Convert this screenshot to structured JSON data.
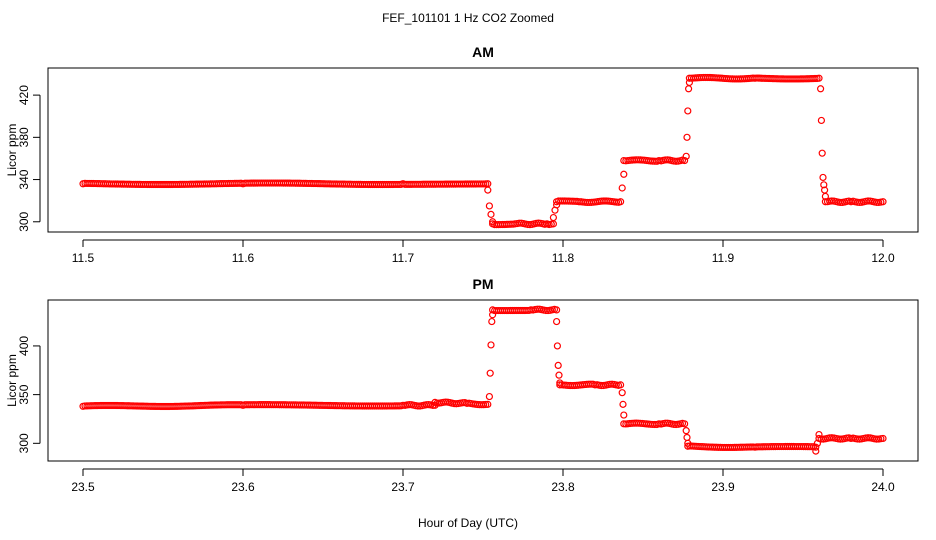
{
  "figure": {
    "title": "FEF_101101  1 Hz CO2 Zoomed",
    "xlabel": "Hour of Day (UTC)"
  },
  "colors": {
    "points": "#ff0000",
    "axes": "#000000"
  },
  "chart_data": [
    {
      "type": "scatter",
      "title": "AM",
      "xlabel": "",
      "ylabel": "Licor ppm",
      "xlim": [
        11.5,
        12.0
      ],
      "ylim": [
        296,
        440
      ],
      "xticks": [
        "11.5",
        "11.6",
        "11.7",
        "11.8",
        "11.9",
        "12.0"
      ],
      "yticks": [
        "300",
        "340",
        "380",
        "420"
      ],
      "series": [
        {
          "marker": "open-circle",
          "segments": [
            {
              "x": [
                11.5,
                11.6,
                11.7,
                11.753
              ],
              "y": [
                336,
                336,
                336,
                336
              ]
            },
            {
              "x": [
                11.753,
                11.754,
                11.755,
                11.756
              ],
              "y": [
                330,
                315,
                307,
                300
              ]
            },
            {
              "x": [
                11.756,
                11.77,
                11.79,
                11.794
              ],
              "y": [
                298,
                298,
                298,
                298
              ]
            },
            {
              "x": [
                11.794,
                11.795,
                11.796
              ],
              "y": [
                304,
                311,
                316
              ]
            },
            {
              "x": [
                11.796,
                11.81,
                11.836
              ],
              "y": [
                319,
                319,
                319
              ]
            },
            {
              "x": [
                11.837,
                11.838
              ],
              "y": [
                332,
                345
              ]
            },
            {
              "x": [
                11.838,
                11.86,
                11.876
              ],
              "y": [
                358,
                358,
                358
              ]
            },
            {
              "x": [
                11.877,
                11.8775,
                11.878,
                11.8785,
                11.879
              ],
              "y": [
                362,
                380,
                405,
                426,
                432
              ]
            },
            {
              "x": [
                11.879,
                11.92,
                11.96
              ],
              "y": [
                436,
                436,
                436
              ]
            },
            {
              "x": [
                11.961,
                11.9615,
                11.962,
                11.9625,
                11.963,
                11.9635,
                11.964
              ],
              "y": [
                426,
                396,
                365,
                342,
                335,
                330,
                324
              ]
            },
            {
              "x": [
                11.964,
                11.98,
                12.0
              ],
              "y": [
                319,
                319,
                319
              ]
            }
          ]
        }
      ]
    },
    {
      "type": "scatter",
      "title": "PM",
      "xlabel": "",
      "ylabel": "Licor ppm",
      "xlim": [
        23.5,
        24.0
      ],
      "ylim": [
        288,
        441
      ],
      "xticks": [
        "23.5",
        "23.6",
        "23.7",
        "23.8",
        "23.9",
        "24.0"
      ],
      "yticks": [
        "300",
        "350",
        "400"
      ],
      "series": [
        {
          "marker": "open-circle",
          "segments": [
            {
              "x": [
                23.5,
                23.6,
                23.7,
                23.72
              ],
              "y": [
                338,
                339,
                339,
                339
              ]
            },
            {
              "x": [
                23.72,
                23.74,
                23.753
              ],
              "y": [
                342,
                341,
                340
              ]
            },
            {
              "x": [
                23.754,
                23.7545,
                23.755,
                23.7555,
                23.756
              ],
              "y": [
                348,
                372,
                401,
                425,
                432
              ]
            },
            {
              "x": [
                23.756,
                23.78,
                23.796
              ],
              "y": [
                437,
                437,
                437
              ]
            },
            {
              "x": [
                23.796,
                23.7965,
                23.797,
                23.7975,
                23.798
              ],
              "y": [
                425,
                400,
                380,
                370,
                362
              ]
            },
            {
              "x": [
                23.798,
                23.82,
                23.836
              ],
              "y": [
                360,
                360,
                360
              ]
            },
            {
              "x": [
                23.837,
                23.8375,
                23.838
              ],
              "y": [
                352,
                340,
                329
              ]
            },
            {
              "x": [
                23.838,
                23.86,
                23.876
              ],
              "y": [
                320,
                320,
                320
              ]
            },
            {
              "x": [
                23.877,
                23.8775,
                23.878
              ],
              "y": [
                313,
                306,
                300
              ]
            },
            {
              "x": [
                23.878,
                23.92,
                23.958
              ],
              "y": [
                297,
                296,
                296
              ]
            },
            {
              "x": [
                23.958,
                23.959,
                23.96
              ],
              "y": [
                292,
                300,
                309
              ]
            },
            {
              "x": [
                23.96,
                23.98,
                24.0
              ],
              "y": [
                305,
                305,
                305
              ]
            }
          ]
        }
      ]
    }
  ]
}
